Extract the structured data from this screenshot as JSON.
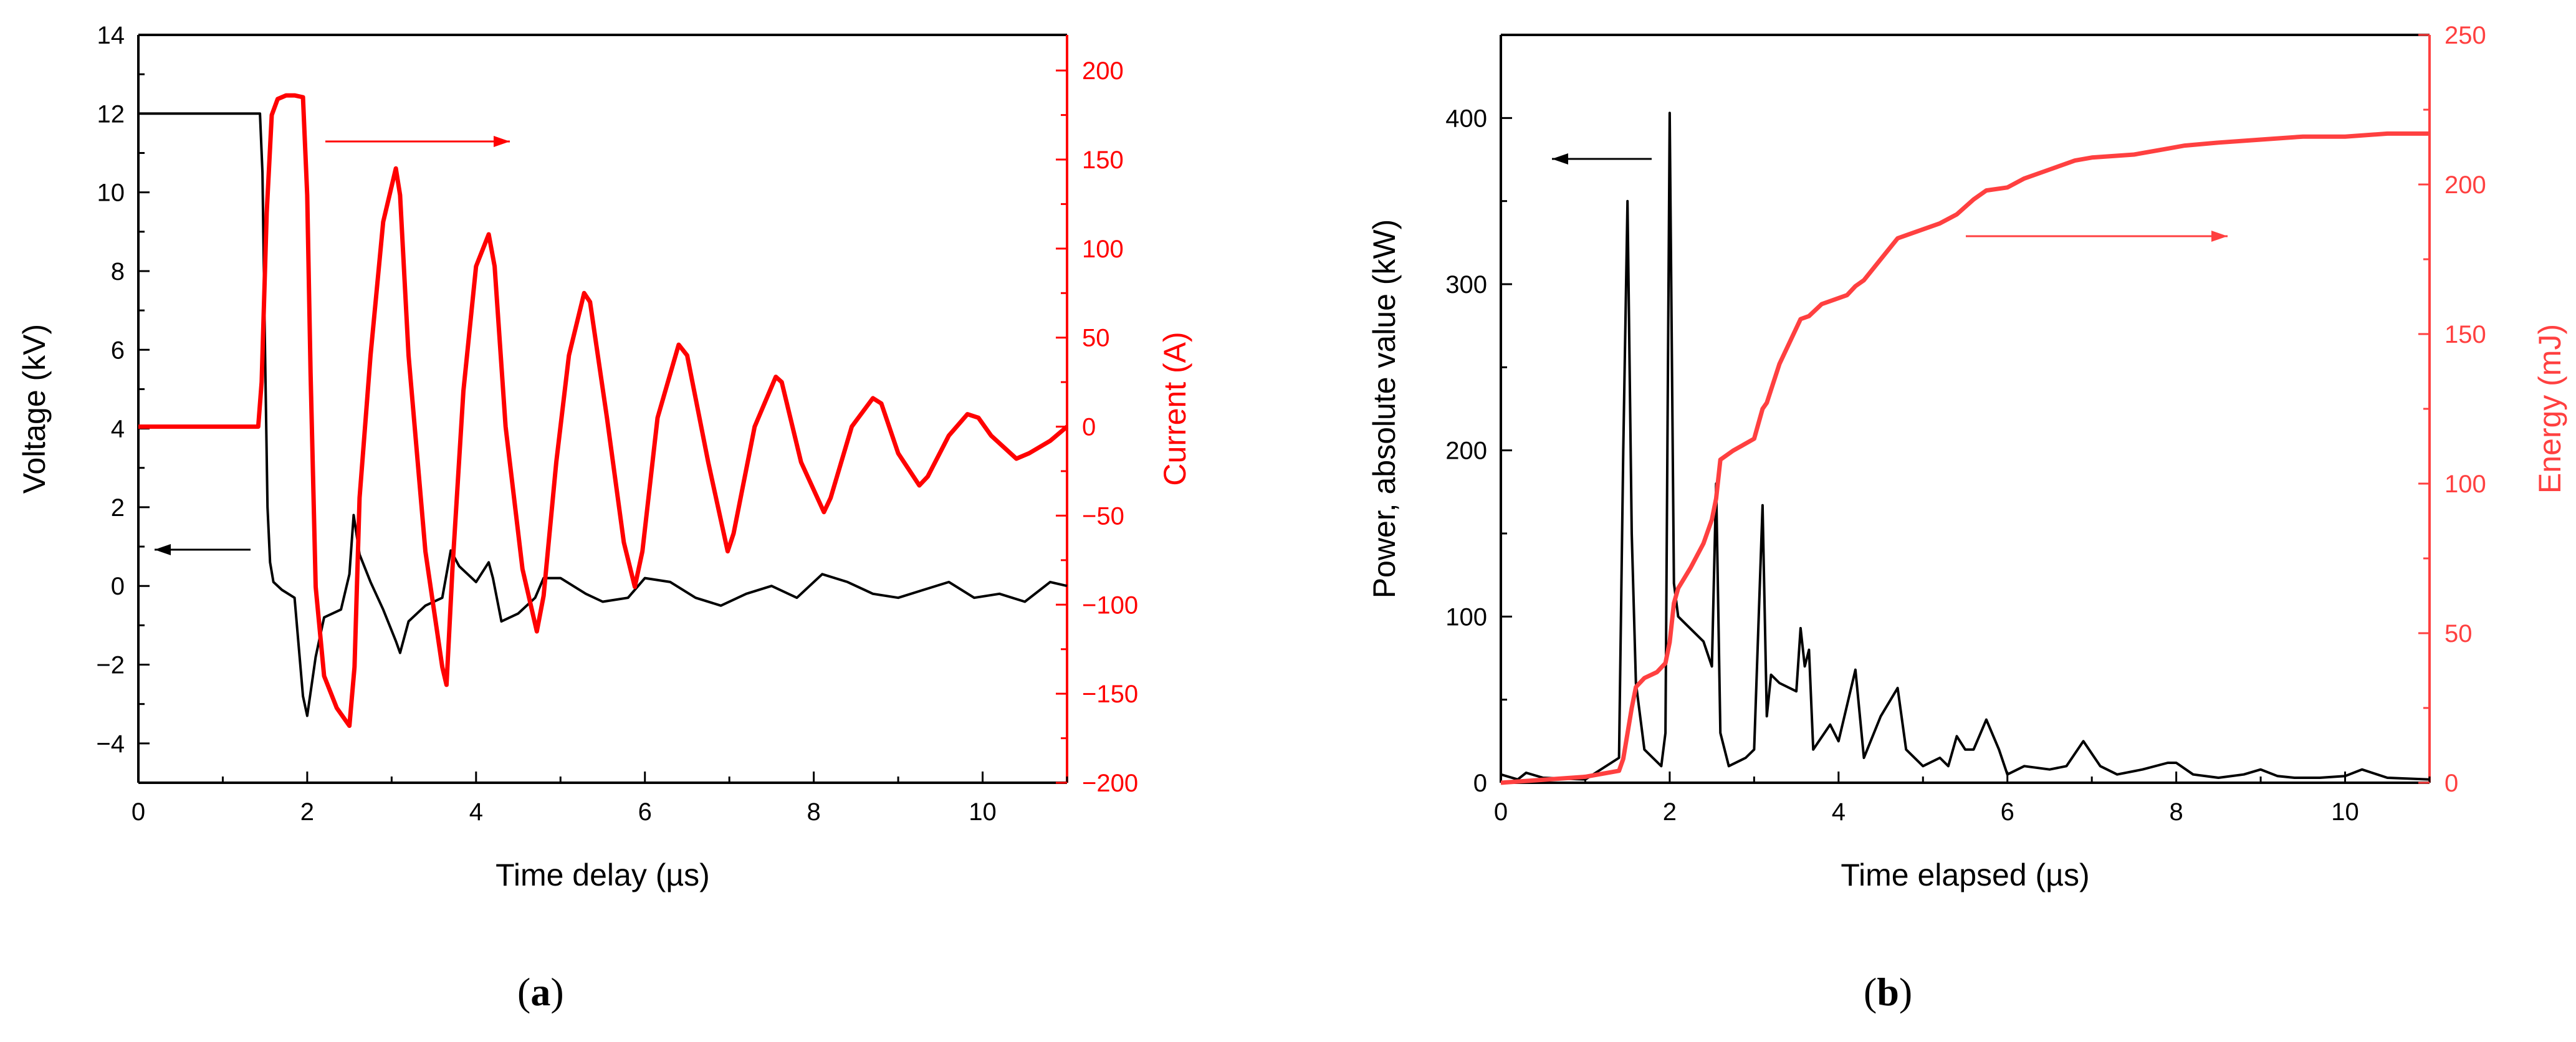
{
  "chart_data": [
    {
      "panel": "(a)",
      "type": "line",
      "title": "",
      "xlabel": "Time delay (µs)",
      "xlim": [
        0,
        11
      ],
      "xticks": [
        0,
        2,
        4,
        6,
        8,
        10
      ],
      "ylabel_left": "Voltage (kV)",
      "ylim_left": [
        -5,
        14
      ],
      "yticks_left": [
        -4,
        -2,
        0,
        2,
        4,
        6,
        8,
        10,
        12,
        14
      ],
      "ylabel_right": "Current (A)",
      "ylim_right": [
        -200,
        220
      ],
      "yticks_right": [
        -200,
        -150,
        -100,
        -50,
        0,
        50,
        100,
        150,
        200
      ],
      "series": [
        {
          "name": "Voltage",
          "axis": "left",
          "color": "#000000",
          "x": [
            0,
            0.5,
            1.0,
            1.44,
            1.47,
            1.5,
            1.53,
            1.56,
            1.6,
            1.7,
            1.85,
            1.95,
            2.0,
            2.1,
            2.2,
            2.4,
            2.5,
            2.55,
            2.62,
            2.75,
            2.9,
            3.05,
            3.1,
            3.2,
            3.4,
            3.6,
            3.7,
            3.8,
            4.0,
            4.15,
            4.2,
            4.3,
            4.5,
            4.7,
            4.8,
            5.0,
            5.3,
            5.5,
            5.8,
            6.0,
            6.3,
            6.6,
            6.9,
            7.2,
            7.5,
            7.8,
            8.1,
            8.4,
            8.7,
            9.0,
            9.3,
            9.6,
            9.9,
            10.2,
            10.5,
            10.8,
            11.0
          ],
          "y": [
            12.0,
            12.0,
            12.0,
            12.0,
            10.5,
            6.0,
            2.0,
            0.6,
            0.1,
            -0.1,
            -0.3,
            -2.8,
            -3.3,
            -1.8,
            -0.8,
            -0.6,
            0.3,
            1.8,
            0.8,
            0.1,
            -0.6,
            -1.4,
            -1.7,
            -0.9,
            -0.5,
            -0.3,
            0.9,
            0.5,
            0.1,
            0.6,
            0.2,
            -0.9,
            -0.7,
            -0.3,
            0.2,
            0.2,
            -0.2,
            -0.4,
            -0.3,
            0.2,
            0.1,
            -0.3,
            -0.5,
            -0.2,
            0.0,
            -0.3,
            0.3,
            0.1,
            -0.2,
            -0.3,
            -0.1,
            0.1,
            -0.3,
            -0.2,
            -0.4,
            0.1,
            0.0
          ]
        },
        {
          "name": "Current",
          "axis": "right",
          "color": "#ff0000",
          "x": [
            0,
            0.5,
            1.0,
            1.42,
            1.46,
            1.52,
            1.58,
            1.65,
            1.75,
            1.85,
            1.95,
            2.0,
            2.04,
            2.1,
            2.2,
            2.35,
            2.5,
            2.56,
            2.62,
            2.75,
            2.9,
            3.05,
            3.1,
            3.2,
            3.4,
            3.6,
            3.65,
            3.72,
            3.85,
            4.0,
            4.15,
            4.22,
            4.35,
            4.55,
            4.72,
            4.8,
            4.95,
            5.1,
            5.28,
            5.35,
            5.55,
            5.75,
            5.88,
            5.97,
            6.15,
            6.4,
            6.5,
            6.75,
            6.98,
            7.05,
            7.3,
            7.55,
            7.62,
            7.85,
            8.12,
            8.2,
            8.45,
            8.7,
            8.8,
            9.0,
            9.25,
            9.35,
            9.6,
            9.82,
            9.95,
            10.1,
            10.4,
            10.55,
            10.8,
            11.0
          ],
          "y": [
            0,
            0,
            0,
            0,
            25,
            120,
            175,
            184,
            186,
            186,
            185,
            130,
            30,
            -90,
            -140,
            -158,
            -168,
            -135,
            -40,
            40,
            115,
            145,
            130,
            40,
            -70,
            -135,
            -145,
            -80,
            20,
            90,
            108,
            90,
            0,
            -80,
            -115,
            -95,
            -20,
            40,
            75,
            70,
            5,
            -65,
            -90,
            -70,
            5,
            46,
            40,
            -20,
            -70,
            -60,
            0,
            28,
            25,
            -20,
            -48,
            -40,
            0,
            16,
            13,
            -15,
            -33,
            -28,
            -5,
            7,
            5,
            -5,
            -18,
            -15,
            -8,
            0
          ]
        }
      ],
      "annotations": [
        {
          "text": "←",
          "meaning": "voltage series uses left axis"
        },
        {
          "text": "→",
          "meaning": "current series uses right axis"
        }
      ]
    },
    {
      "panel": "(b)",
      "type": "line",
      "title": "",
      "xlabel": "Time elapsed (µs)",
      "xlim": [
        0,
        11
      ],
      "xticks": [
        0,
        2,
        4,
        6,
        8,
        10
      ],
      "ylabel_left": "Power, absolute value (kW)",
      "ylim_left": [
        0,
        450
      ],
      "yticks_left": [
        0,
        100,
        200,
        300,
        400
      ],
      "ylabel_right": "Energy (mJ)",
      "ylim_right": [
        0,
        250
      ],
      "yticks_right": [
        0,
        50,
        100,
        150,
        200,
        250
      ],
      "series": [
        {
          "name": "Power",
          "axis": "left",
          "color": "#000000",
          "x": [
            0,
            0.2,
            0.3,
            0.5,
            1.0,
            1.4,
            1.45,
            1.5,
            1.55,
            1.6,
            1.7,
            1.8,
            1.9,
            1.95,
            2.0,
            2.05,
            2.1,
            2.2,
            2.4,
            2.5,
            2.55,
            2.6,
            2.7,
            2.9,
            3.0,
            3.1,
            3.15,
            3.2,
            3.3,
            3.5,
            3.55,
            3.6,
            3.65,
            3.7,
            3.9,
            4.0,
            4.2,
            4.3,
            4.5,
            4.7,
            4.8,
            5.0,
            5.2,
            5.3,
            5.4,
            5.5,
            5.6,
            5.75,
            5.9,
            6.0,
            6.2,
            6.5,
            6.7,
            6.9,
            7.1,
            7.3,
            7.6,
            7.9,
            8.0,
            8.2,
            8.5,
            8.8,
            9.0,
            9.2,
            9.4,
            9.7,
            10.0,
            10.2,
            10.5,
            11.0
          ],
          "y": [
            5,
            2,
            6,
            3,
            2,
            15,
            200,
            350,
            150,
            60,
            20,
            15,
            10,
            30,
            403,
            120,
            100,
            95,
            85,
            70,
            180,
            30,
            10,
            15,
            20,
            167,
            40,
            65,
            60,
            55,
            93,
            70,
            80,
            20,
            35,
            25,
            68,
            15,
            40,
            57,
            20,
            10,
            15,
            10,
            28,
            20,
            20,
            38,
            20,
            5,
            10,
            8,
            10,
            25,
            10,
            5,
            8,
            12,
            12,
            5,
            3,
            5,
            8,
            4,
            3,
            3,
            4,
            8,
            3,
            2
          ]
        },
        {
          "name": "Energy",
          "axis": "right",
          "color": "#ff4040",
          "x": [
            0,
            0.5,
            1.0,
            1.4,
            1.45,
            1.55,
            1.6,
            1.7,
            1.85,
            1.95,
            2.0,
            2.05,
            2.1,
            2.25,
            2.4,
            2.5,
            2.55,
            2.6,
            2.75,
            3.0,
            3.1,
            3.15,
            3.3,
            3.55,
            3.65,
            3.8,
            4.1,
            4.2,
            4.3,
            4.5,
            4.7,
            4.8,
            5.2,
            5.4,
            5.6,
            5.75,
            6.0,
            6.2,
            6.5,
            6.8,
            7.0,
            7.5,
            7.9,
            8.1,
            8.5,
            9.0,
            9.5,
            10.0,
            10.5,
            11.0
          ],
          "y": [
            0,
            1,
            2,
            4,
            8,
            25,
            32,
            35,
            37,
            40,
            47,
            60,
            65,
            72,
            80,
            88,
            95,
            108,
            111,
            115,
            125,
            127,
            140,
            155,
            156,
            160,
            163,
            166,
            168,
            175,
            182,
            183,
            187,
            190,
            195,
            198,
            199,
            202,
            205,
            208,
            209,
            210,
            212,
            213,
            214,
            215,
            216,
            216,
            217,
            217
          ]
        }
      ],
      "annotations": [
        {
          "text": "←",
          "meaning": "power series uses left axis"
        },
        {
          "text": "→",
          "meaning": "energy series uses right axis"
        }
      ]
    }
  ],
  "panel_labels": [
    "a",
    "b"
  ]
}
